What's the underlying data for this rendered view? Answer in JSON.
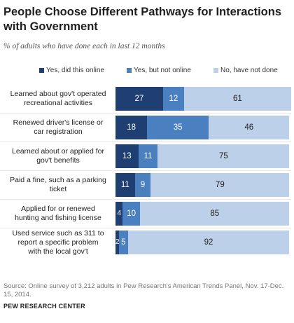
{
  "title": "People Choose Different Pathways for Interactions with Government",
  "subtitle": "% of adults who have done each in last 12 months",
  "source": "Source: Online survey of 3,212 adults in Pew Research's American Trends Panel, Nov. 17-Dec. 15, 2014.",
  "organization": "PEW RESEARCH CENTER",
  "colors": {
    "online": "#1f3f73",
    "not_online": "#4a80c0",
    "not_done": "#bcd0ea",
    "text_light": "#ffffff",
    "text_dark": "#222222"
  },
  "chart_data": {
    "type": "bar",
    "orientation": "horizontal",
    "stacked": true,
    "categories": [
      "Learned about gov't operated recreational activities",
      "Renewed driver's license or car registration",
      "Learned about or applied for gov't benefits",
      "Paid a fine, such as a parking ticket",
      "Applied for or renewed hunting and fishing license",
      "Used service such as 311 to report a specific problem with the local gov't"
    ],
    "category_lines": [
      [
        "Learned about gov't operated",
        "recreational activities"
      ],
      [
        "Renewed driver's license or",
        "car registration"
      ],
      [
        "Learned about or applied for",
        "gov't benefits"
      ],
      [
        "Paid a fine, such as a parking",
        "ticket"
      ],
      [
        "Applied for or renewed",
        "hunting and fishing license"
      ],
      [
        "Used service such as 311 to",
        "report a specific problem",
        "with the local gov't"
      ]
    ],
    "series": [
      {
        "name": "Yes, did this online",
        "values": [
          27,
          18,
          13,
          11,
          4,
          2
        ]
      },
      {
        "name": "Yes, but not online",
        "values": [
          12,
          35,
          11,
          9,
          10,
          5
        ]
      },
      {
        "name": "No, have not done",
        "values": [
          61,
          46,
          75,
          79,
          85,
          92
        ]
      }
    ],
    "xlim": [
      0,
      100
    ],
    "legend": "top"
  }
}
